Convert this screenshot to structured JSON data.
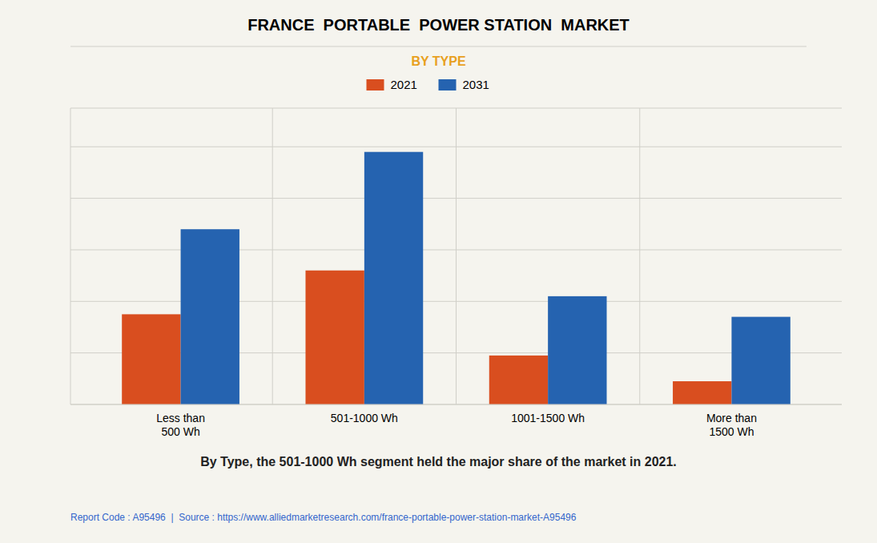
{
  "chart_data": {
    "type": "bar",
    "title": "FRANCE  PORTABLE  POWER STATION  MARKET",
    "subtitle": "BY TYPE",
    "categories": [
      "Less than\n500 Wh",
      "501-1000 Wh",
      "1001-1500 Wh",
      "More than\n1500 Wh"
    ],
    "series": [
      {
        "name": "2021",
        "color": "#d94e1f",
        "values": [
          3.5,
          5.2,
          1.9,
          0.9
        ]
      },
      {
        "name": "2031",
        "color": "#2563b0",
        "values": [
          6.8,
          9.8,
          4.2,
          3.4
        ]
      }
    ],
    "ylim": [
      0,
      11.5
    ],
    "yticks": [
      0,
      2,
      4,
      6,
      8,
      10
    ],
    "grid": true,
    "tick_labels": "x",
    "legend": "top",
    "annotations": [
      "By Type, the 501-1000 Wh segment held the major share of the market in 2021.",
      "Report Code : A95496  |  Source : https://www.alliedmarketresearch.com/france-portable-power-station-market-A95496"
    ]
  }
}
